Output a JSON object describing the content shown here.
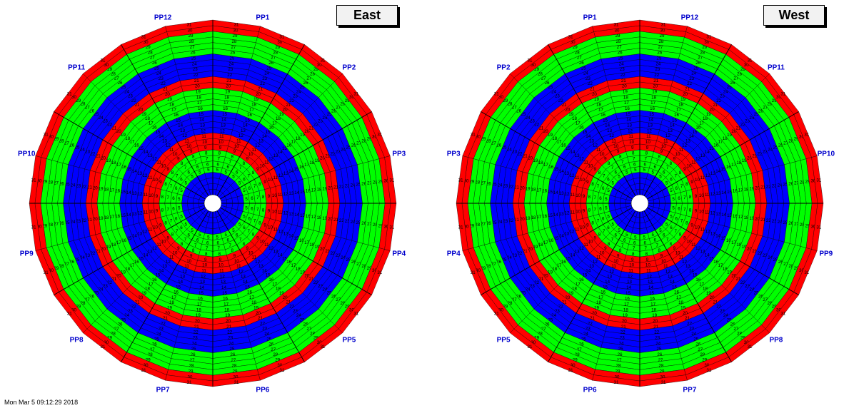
{
  "detectors": [
    {
      "title": "East",
      "pp_labels": [
        {
          "text": "PP1",
          "angle_deg": 75
        },
        {
          "text": "PP2",
          "angle_deg": 45
        },
        {
          "text": "PP3",
          "angle_deg": 15
        },
        {
          "text": "PP4",
          "angle_deg": -15
        },
        {
          "text": "PP5",
          "angle_deg": -45
        },
        {
          "text": "PP6",
          "angle_deg": -75
        },
        {
          "text": "PP7",
          "angle_deg": -105
        },
        {
          "text": "PP8",
          "angle_deg": -135
        },
        {
          "text": "PP9",
          "angle_deg": -165
        },
        {
          "text": "PP10",
          "angle_deg": 165
        },
        {
          "text": "PP11",
          "angle_deg": 135
        },
        {
          "text": "PP12",
          "angle_deg": 105
        }
      ]
    },
    {
      "title": "West",
      "pp_labels": [
        {
          "text": "PP12",
          "angle_deg": 75
        },
        {
          "text": "PP11",
          "angle_deg": 45
        },
        {
          "text": "PP10",
          "angle_deg": 15
        },
        {
          "text": "PP9",
          "angle_deg": -15
        },
        {
          "text": "PP8",
          "angle_deg": -45
        },
        {
          "text": "PP7",
          "angle_deg": -75
        },
        {
          "text": "PP6",
          "angle_deg": -105
        },
        {
          "text": "PP5",
          "angle_deg": -135
        },
        {
          "text": "PP4",
          "angle_deg": -165
        },
        {
          "text": "PP3",
          "angle_deg": 165
        },
        {
          "text": "PP2",
          "angle_deg": 135
        },
        {
          "text": "PP1",
          "angle_deg": 105
        }
      ]
    }
  ],
  "ring_numbers": [
    5,
    6,
    7,
    8,
    9,
    10,
    11,
    12,
    13,
    14,
    15,
    16,
    17,
    18,
    19,
    20,
    21,
    22,
    23,
    24,
    25,
    26,
    27,
    28,
    29,
    30,
    31
  ],
  "ring_colors": {
    "5": "#00ff00",
    "6": "#00ff00",
    "7": "#00ff00",
    "8": "#00ff00",
    "9": "#ff0000",
    "10": "#ff0000",
    "11": "#ff0000",
    "12": "#0000ff",
    "13": "#0000ff",
    "14": "#0000ff",
    "15": "#0000ff",
    "16": "#00ff00",
    "17": "#00ff00",
    "18": "#00ff00",
    "19": "#00ff00",
    "20": "#ff0000",
    "21": "#ff0000",
    "22": "#0000ff",
    "23": "#0000ff",
    "24": "#0000ff",
    "25": "#0000ff",
    "26": "#00ff00",
    "27": "#00ff00",
    "28": "#00ff00",
    "29": "#00ff00",
    "30": "#ff0000",
    "31": "#ff0000"
  },
  "inner_blue_rings": 4,
  "label_color": "#0000cc",
  "footer_text": "Mon Mar  5 09:12:29 2018"
}
